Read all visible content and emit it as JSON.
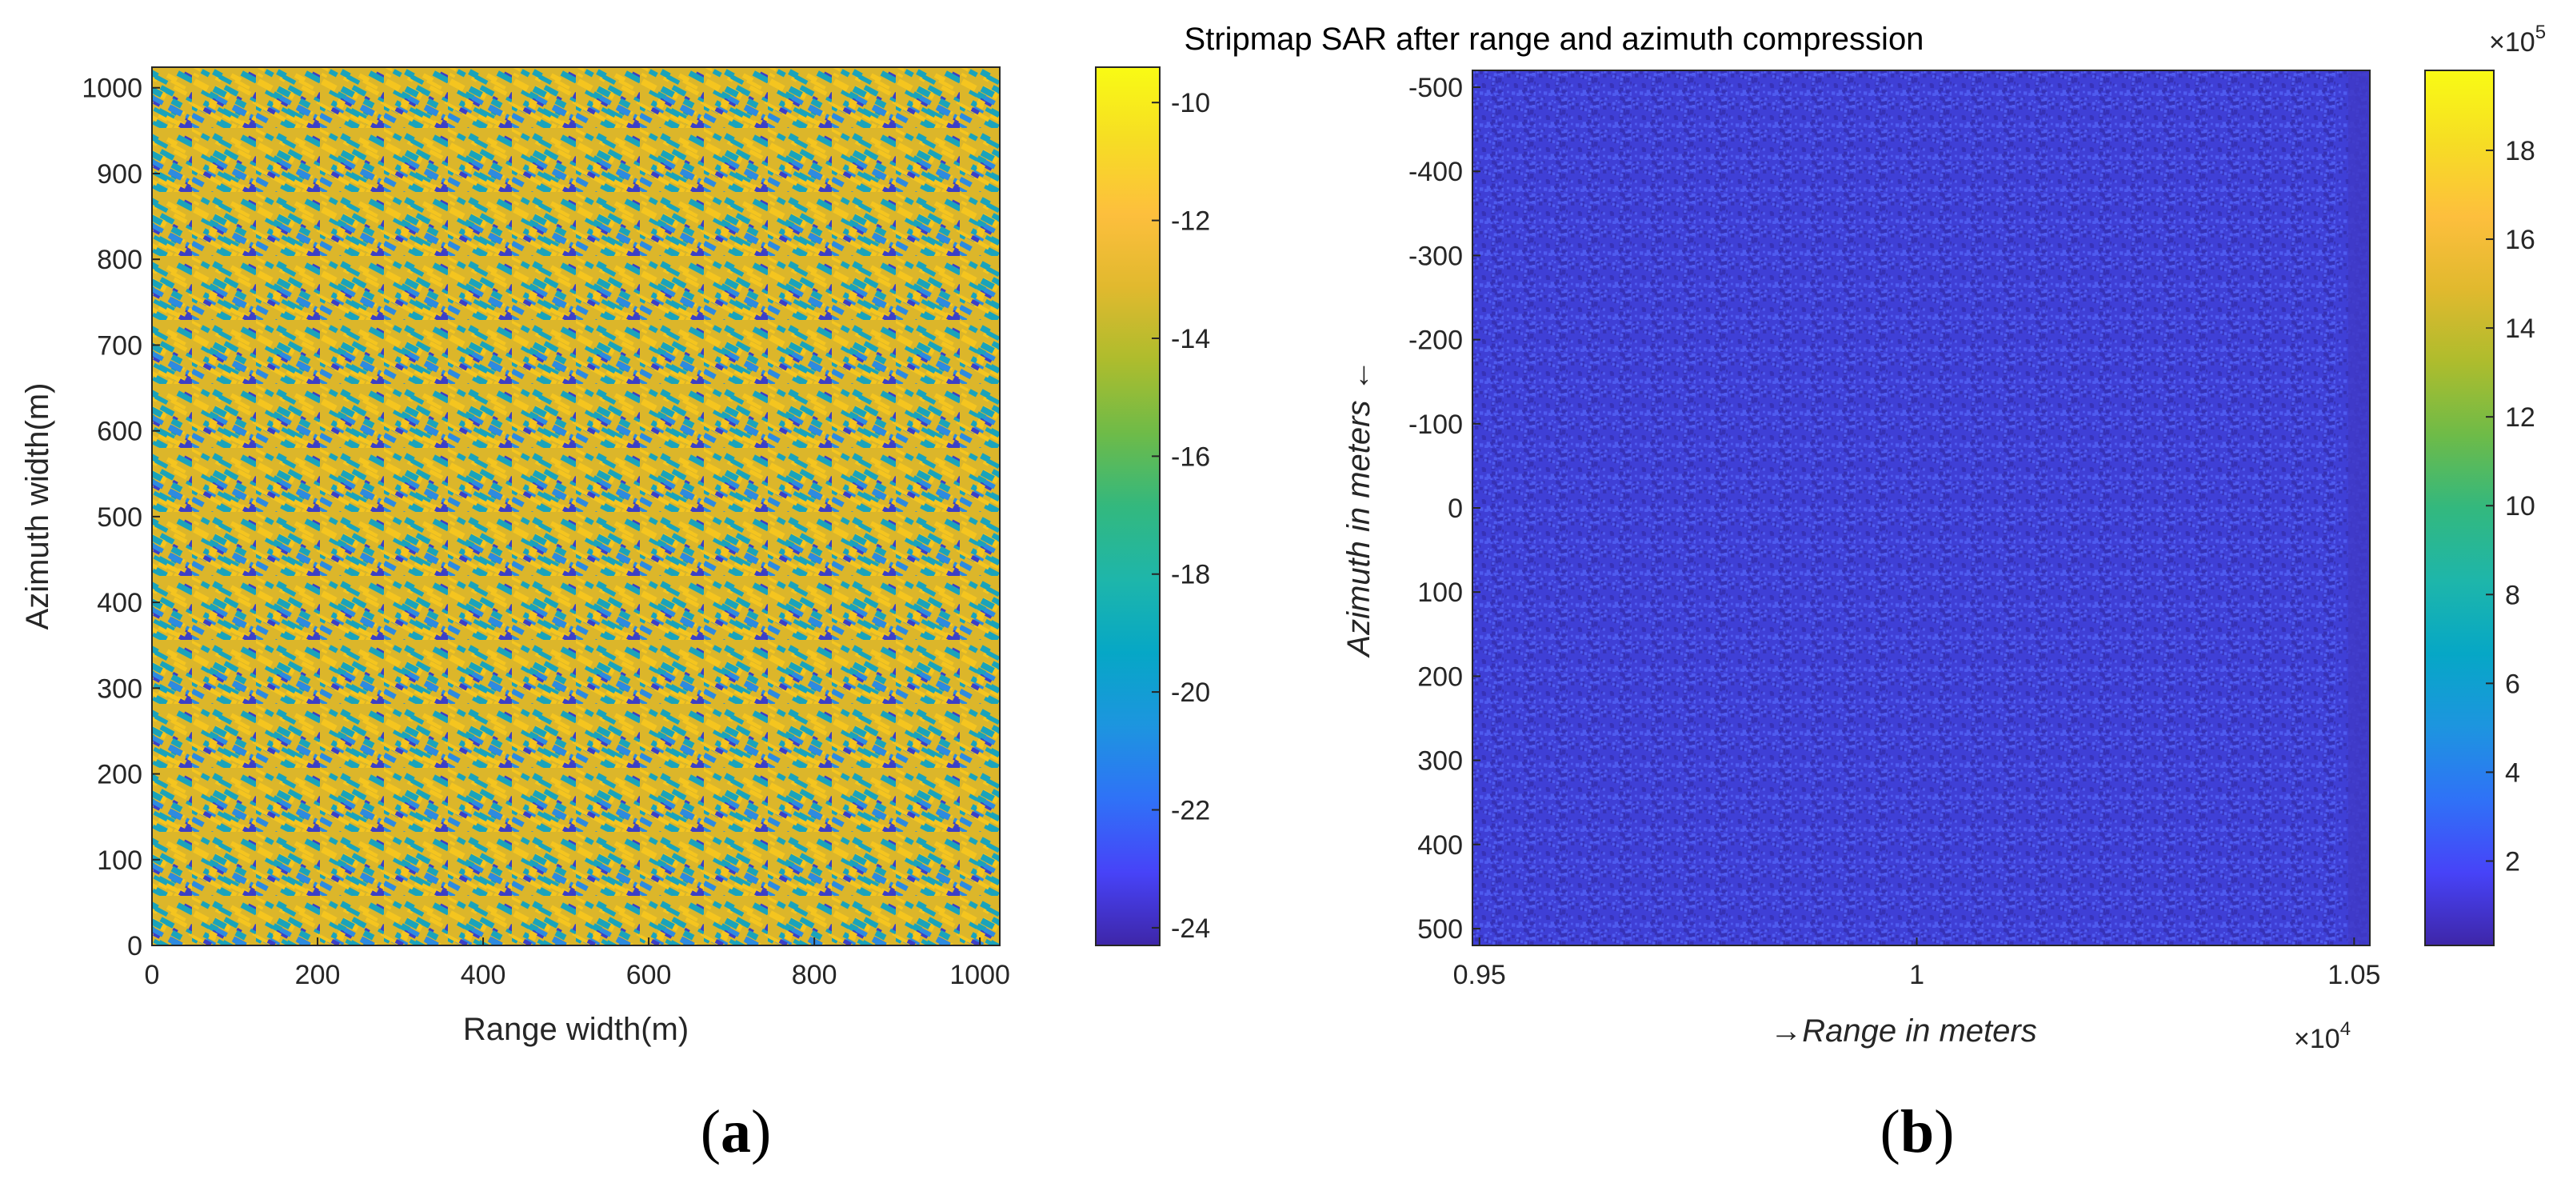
{
  "chart_data": [
    {
      "panel": "a",
      "type": "heatmap",
      "title": "",
      "xlabel": "Range width(m)",
      "ylabel": "Azimuth width(m)",
      "xlim": [
        0,
        1024
      ],
      "ylim": [
        0,
        1024
      ],
      "x_ticks": [
        0,
        200,
        400,
        600,
        800,
        1000
      ],
      "y_ticks": [
        0,
        100,
        200,
        300,
        400,
        500,
        600,
        700,
        800,
        900,
        1000
      ],
      "x_tick_labels": [
        "0",
        "200",
        "400",
        "600",
        "800",
        "1000"
      ],
      "y_tick_labels": [
        "0",
        "100",
        "200",
        "300",
        "400",
        "500",
        "600",
        "700",
        "800",
        "900",
        "1000"
      ],
      "colorbar": {
        "range": [
          -24.3,
          -9.4
        ],
        "ticks": [
          -24,
          -22,
          -20,
          -18,
          -16,
          -14,
          -12,
          -10
        ],
        "tick_labels": [
          "-24",
          "-22",
          "-20",
          "-18",
          "-16",
          "-14",
          "-12",
          "-10"
        ],
        "exponent_label": null
      },
      "description_values": "simulated sea-surface backscatter texture, values mostly between -18 and -10 with diagonal darker streaks near -22"
    },
    {
      "panel": "b",
      "type": "heatmap",
      "title": "Stripmap SAR after range and azimuth compression",
      "xlabel": "→Range in meters",
      "ylabel": "Azimuth in meters ←",
      "x_exponent_label": "×10",
      "x_exponent_power": "4",
      "xlim": [
        0.95,
        1.05
      ],
      "ylim": [
        -520,
        520
      ],
      "x_ticks": [
        0.95,
        1,
        1.05
      ],
      "y_ticks": [
        -500,
        -400,
        -300,
        -200,
        -100,
        0,
        100,
        200,
        300,
        400,
        500
      ],
      "x_tick_labels": [
        "0.95",
        "1",
        "1.05"
      ],
      "y_tick_labels": [
        "-500",
        "-400",
        "-300",
        "-200",
        "-100",
        "0",
        "100",
        "200",
        "300",
        "400",
        "500"
      ],
      "y_reversed": true,
      "colorbar": {
        "range": [
          0.1,
          19.8
        ],
        "ticks": [
          2,
          4,
          6,
          8,
          10,
          12,
          14,
          16,
          18
        ],
        "tick_labels": [
          "2",
          "4",
          "6",
          "8",
          "10",
          "12",
          "14",
          "16",
          "18"
        ],
        "exponent_label": "×10",
        "exponent_power": "5"
      },
      "description_values": "compressed SAR image, low amplitude almost everywhere (about 1 to 3 x10^5)"
    }
  ],
  "captions": {
    "a": "a",
    "b": "b"
  },
  "colormap": [
    "#3e26a8",
    "#4743f8",
    "#2f72f7",
    "#1d95df",
    "#06a7c6",
    "#1eb6aa",
    "#33b87e",
    "#6ebb48",
    "#aebc2d",
    "#e1b92e",
    "#fdbf3d",
    "#f6dd24",
    "#f9fb14"
  ]
}
